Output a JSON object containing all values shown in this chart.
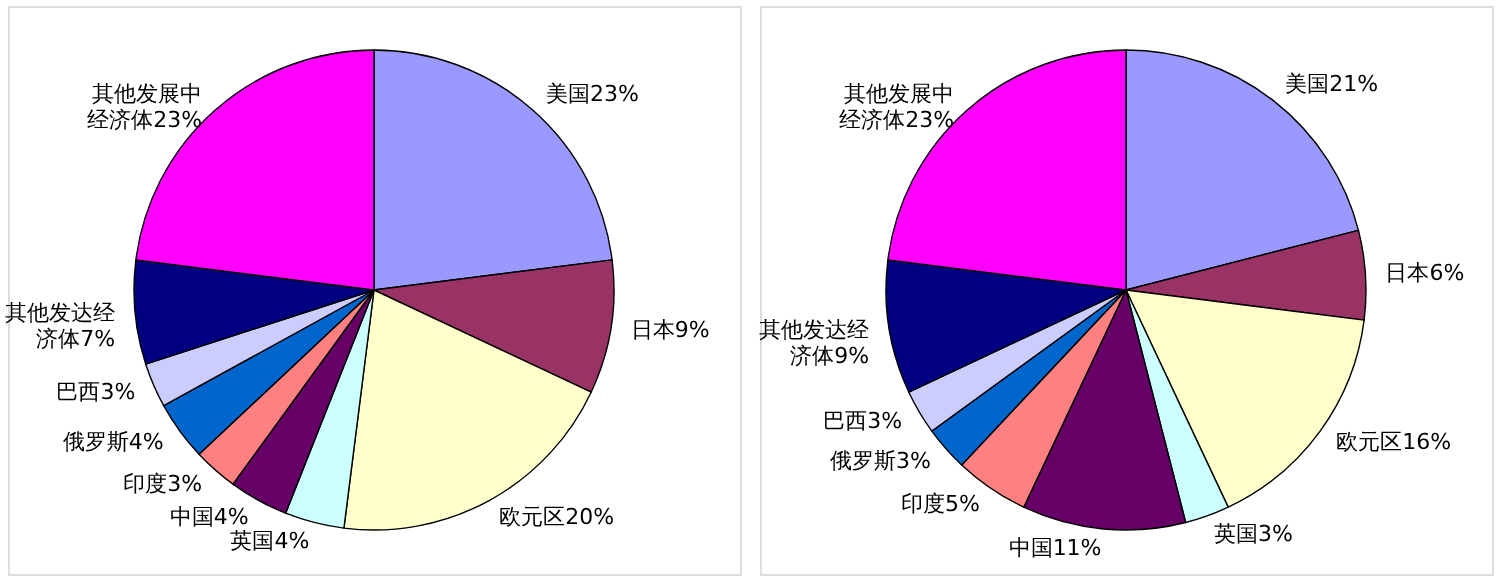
{
  "chart_data": [
    {
      "type": "pie",
      "categories": [
        "美国",
        "日本",
        "欧元区",
        "英国",
        "中国",
        "印度",
        "俄罗斯",
        "巴西",
        "其他发达经济体",
        "其他发展中经济体"
      ],
      "values": [
        23,
        9,
        20,
        4,
        4,
        3,
        4,
        3,
        7,
        23
      ],
      "colors": [
        "#9999ff",
        "#993366",
        "#ffffcc",
        "#ccffff",
        "#660066",
        "#ff8080",
        "#0066cc",
        "#ccccff",
        "#000080",
        "#ff00ff"
      ],
      "value_labels": [
        "23%",
        "9%",
        "20%",
        "4%",
        "4%",
        "3%",
        "4%",
        "3%",
        "7%",
        "23%"
      ],
      "legend": false
    },
    {
      "type": "pie",
      "categories": [
        "美国",
        "日本",
        "欧元区",
        "英国",
        "中国",
        "印度",
        "俄罗斯",
        "巴西",
        "其他发达经济体",
        "其他发展中经济体"
      ],
      "values": [
        21,
        6,
        16,
        3,
        11,
        5,
        3,
        3,
        9,
        23
      ],
      "colors": [
        "#9999ff",
        "#993366",
        "#ffffcc",
        "#ccffff",
        "#660066",
        "#ff8080",
        "#0066cc",
        "#ccccff",
        "#000080",
        "#ff00ff"
      ],
      "value_labels": [
        "21%",
        "6%",
        "16%",
        "3%",
        "11%",
        "5%",
        "3%",
        "3%",
        "9%",
        "23%"
      ],
      "legend": false
    }
  ]
}
